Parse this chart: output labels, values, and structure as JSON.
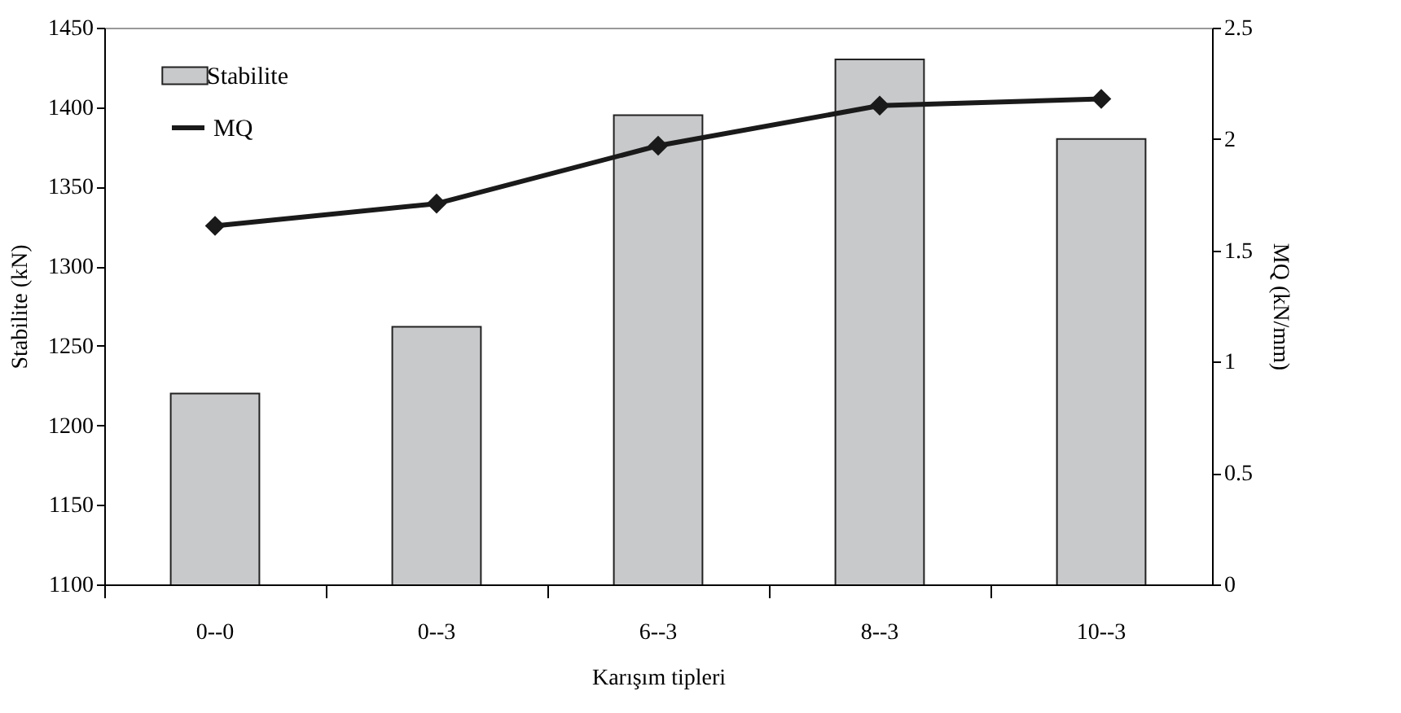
{
  "chart_data": {
    "type": "bar",
    "xlabel": "Karışım tipleri",
    "ylabel": "Stabilite (kN)",
    "y2label": "MQ (kN/mm)",
    "categories": [
      "0--0",
      "0--3",
      "6--3",
      "8--3",
      "10--3"
    ],
    "series": [
      {
        "name": "Stabilite",
        "color": "#c8c9cb",
        "values": [
          1220,
          1262,
          1395,
          1430,
          1380
        ]
      },
      {
        "name": "MQ",
        "type": "line",
        "axis": "y2",
        "color": "#1a1a1a",
        "values": [
          1.61,
          1.71,
          1.97,
          2.15,
          2.18
        ]
      }
    ],
    "ylim": [
      1100,
      1450
    ],
    "yticks": [
      1100,
      1150,
      1200,
      1250,
      1300,
      1350,
      1400,
      1450
    ],
    "y2lim": [
      0,
      2.5
    ],
    "y2ticks": [
      0,
      0.5,
      1,
      1.5,
      2,
      2.5
    ],
    "legend": "top left",
    "marker": "diamond",
    "grid": false
  }
}
